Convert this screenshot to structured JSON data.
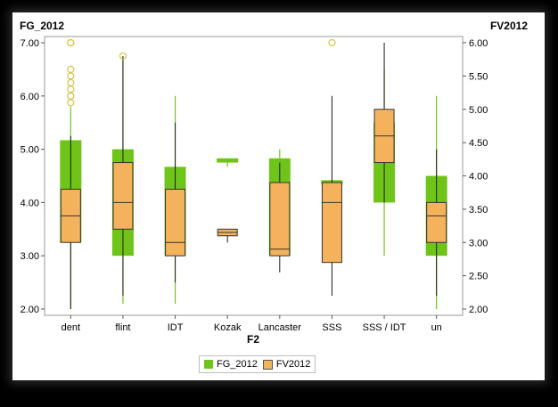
{
  "chart_data": {
    "type": "boxplot",
    "title": "",
    "xlabel": "F2",
    "y_left_label": "FG_2012",
    "y_right_label": "FV2012",
    "y_left_lim": [
      2.0,
      7.0
    ],
    "y_right_lim": [
      2.0,
      6.0
    ],
    "y_left_ticks": [
      "2.00",
      "3.00",
      "4.00",
      "5.00",
      "6.00",
      "7.00"
    ],
    "y_right_ticks": [
      "2.00",
      "2.50",
      "3.00",
      "3.50",
      "4.00",
      "4.50",
      "5.00",
      "5.50",
      "6.00"
    ],
    "categories": [
      "dent",
      "flint",
      "IDT",
      "Kozak",
      "Lancaster",
      "SSS",
      "SSS / IDT",
      "un"
    ],
    "grid": false,
    "legend_position": "bottom",
    "series": [
      {
        "name": "FG_2012",
        "axis": "left",
        "color": "#6fc41a",
        "boxes": [
          {
            "category": "dent",
            "whisker_low": 2.0,
            "q1": 3.25,
            "median": 3.75,
            "q3": 5.17,
            "whisker_high": 5.8,
            "outliers": [
              6.0,
              6.25,
              6.5,
              7.0
            ]
          },
          {
            "category": "flint",
            "whisker_low": 2.1,
            "q1": 3.0,
            "median": 3.5,
            "q3": 5.0,
            "whisker_high": 6.75,
            "outliers": []
          },
          {
            "category": "IDT",
            "whisker_low": 2.1,
            "q1": 3.0,
            "median": 3.75,
            "q3": 4.67,
            "whisker_high": 6.0,
            "outliers": []
          },
          {
            "category": "Kozak",
            "whisker_low": 4.67,
            "q1": 4.75,
            "median": 4.8,
            "q3": 4.83,
            "whisker_high": 4.83,
            "outliers": []
          },
          {
            "category": "Lancaster",
            "whisker_low": 3.0,
            "q1": 3.0,
            "median": 4.0,
            "q3": 4.83,
            "whisker_high": 5.0,
            "outliers": []
          },
          {
            "category": "SSS",
            "whisker_low": 4.2,
            "q1": 4.33,
            "median": 4.4,
            "q3": 4.42,
            "whisker_high": 4.42,
            "outliers": [
              7.0
            ]
          },
          {
            "category": "SSS / IDT",
            "whisker_low": 3.0,
            "q1": 4.0,
            "median": 4.75,
            "q3": 5.5,
            "whisker_high": 6.5,
            "outliers": []
          },
          {
            "category": "un",
            "whisker_low": 2.0,
            "q1": 3.0,
            "median": 3.75,
            "q3": 4.5,
            "whisker_high": 6.0,
            "outliers": []
          }
        ]
      },
      {
        "name": "FV2012",
        "axis": "right",
        "color": "#f5b25c",
        "boxes": [
          {
            "category": "dent",
            "whisker_low": 2.0,
            "q1": 3.0,
            "median": 3.4,
            "q3": 3.8,
            "whisker_high": 4.6,
            "outliers": [
              5.1,
              5.3,
              5.5,
              6.0
            ]
          },
          {
            "category": "flint",
            "whisker_low": 2.2,
            "q1": 3.2,
            "median": 3.6,
            "q3": 4.2,
            "whisker_high": 5.8,
            "outliers": [
              5.8
            ]
          },
          {
            "category": "IDT",
            "whisker_low": 2.4,
            "q1": 2.8,
            "median": 3.0,
            "q3": 3.8,
            "whisker_high": 4.8,
            "outliers": []
          },
          {
            "category": "Kozak",
            "whisker_low": 3.0,
            "q1": 3.1,
            "median": 3.15,
            "q3": 3.2,
            "whisker_high": 3.2,
            "outliers": []
          },
          {
            "category": "Lancaster",
            "whisker_low": 2.55,
            "q1": 2.8,
            "median": 2.9,
            "q3": 3.9,
            "whisker_high": 4.2,
            "outliers": []
          },
          {
            "category": "SSS",
            "whisker_low": 2.2,
            "q1": 2.7,
            "median": 3.6,
            "q3": 3.9,
            "whisker_high": 5.2,
            "outliers": []
          },
          {
            "category": "SSS / IDT",
            "whisker_low": 3.6,
            "q1": 4.2,
            "median": 4.6,
            "q3": 5.0,
            "whisker_high": 6.0,
            "outliers": []
          },
          {
            "category": "un",
            "whisker_low": 2.2,
            "q1": 3.0,
            "median": 3.4,
            "q3": 3.6,
            "whisker_high": 4.4,
            "outliers": []
          }
        ]
      }
    ]
  }
}
